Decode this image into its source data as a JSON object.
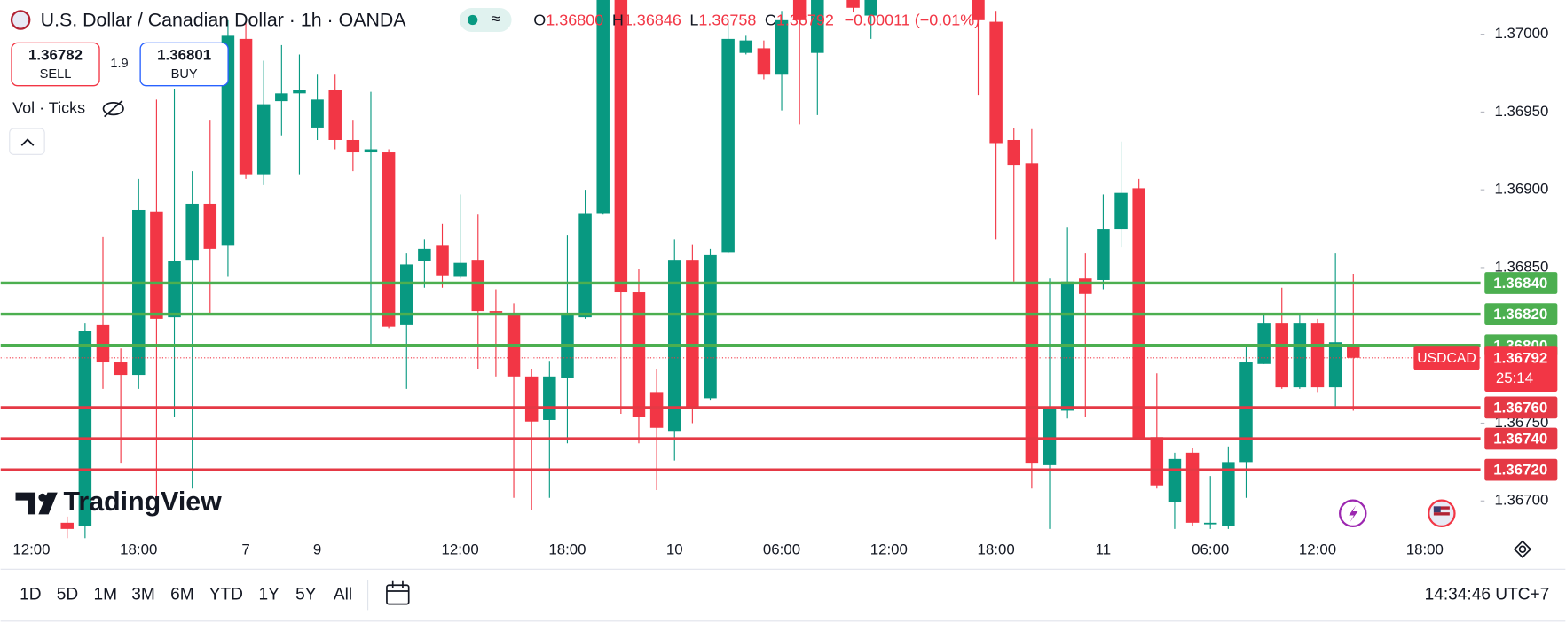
{
  "header": {
    "title": "U.S. Dollar / Canadian Dollar · 1h · OANDA",
    "ohlc": {
      "o_label": "O",
      "open": "1.36800",
      "h_label": "H",
      "high": "1.36846",
      "l_label": "L",
      "low": "1.36758",
      "c_label": "C",
      "close": "1.36792",
      "change": "−0.00011 (−0.01%)"
    }
  },
  "trade": {
    "sell_price": "1.36782",
    "sell_label": "SELL",
    "spread": "1.9",
    "buy_price": "1.36801",
    "buy_label": "BUY"
  },
  "indicator": "Vol · Ticks",
  "watermark": "TradingView",
  "toolbar": {
    "ranges": [
      "1D",
      "5D",
      "1M",
      "3M",
      "6M",
      "YTD",
      "1Y",
      "5Y",
      "All"
    ],
    "clock": "14:34:46 UTC+7"
  },
  "chart_data": {
    "type": "candlestick",
    "up_color": "#089981",
    "down_color": "#f23645",
    "grid": false,
    "categories": [
      "12:00",
      null,
      null,
      null,
      null,
      null,
      "18:00",
      null,
      null,
      null,
      null,
      null,
      "7",
      null,
      null,
      null,
      "9",
      null,
      null,
      null,
      null,
      null,
      null,
      null,
      "12:00",
      null,
      null,
      null,
      null,
      null,
      "18:00",
      null,
      null,
      null,
      null,
      null,
      "10",
      null,
      null,
      null,
      null,
      null,
      "06:00",
      null,
      null,
      null,
      null,
      null,
      "12:00",
      null,
      null,
      null,
      null,
      null,
      "18:00",
      null,
      null,
      null,
      null,
      null,
      "11",
      null,
      null,
      null,
      null,
      null,
      "06:00",
      null,
      null,
      null,
      null,
      null,
      "12:00",
      null,
      null,
      null,
      null,
      null,
      "18:00"
    ],
    "open": [
      null,
      null,
      1.36686,
      1.36684,
      1.36813,
      1.36789,
      1.36781,
      1.36886,
      1.36818,
      1.36855,
      1.36891,
      1.36864,
      1.36997,
      1.3691,
      1.36957,
      1.36962,
      1.3694,
      1.36964,
      1.36932,
      1.36924,
      1.36924,
      1.36813,
      1.36854,
      1.36864,
      1.36844,
      1.36855,
      1.36822,
      1.3682,
      1.3678,
      1.36752,
      1.36779,
      1.36818,
      1.36885,
      1.37025,
      1.36834,
      1.3677,
      1.36745,
      1.36855,
      1.36766,
      1.3686,
      1.36988,
      1.36991,
      1.36974,
      1.37025,
      1.36988,
      null,
      1.3703,
      1.37012,
      null,
      null,
      null,
      null,
      null,
      1.3703,
      1.37008,
      1.36932,
      1.36917,
      1.36723,
      1.36758,
      1.36843,
      1.36842,
      1.36875,
      1.36901,
      1.36741,
      1.36699,
      1.36731,
      1.36685,
      1.36684,
      1.36725,
      1.36788,
      1.36814,
      1.36773,
      1.36814,
      1.36773,
      1.368,
      null,
      null,
      null,
      null
    ],
    "high": [
      null,
      null,
      1.3669,
      1.36814,
      1.3687,
      1.36798,
      1.36907,
      1.36958,
      1.36965,
      1.36912,
      1.36945,
      1.37009,
      1.37009,
      1.36983,
      1.36993,
      1.36987,
      1.36974,
      1.36974,
      1.36945,
      1.36963,
      1.36926,
      1.36859,
      1.36868,
      1.36878,
      1.36897,
      1.36884,
      1.36836,
      1.36827,
      1.36785,
      1.3679,
      1.36871,
      1.369,
      1.3703,
      1.3703,
      1.36849,
      1.36785,
      1.36868,
      1.36865,
      1.36862,
      1.37009,
      1.36999,
      1.36996,
      1.37015,
      1.3703,
      1.3703,
      null,
      1.37035,
      1.37035,
      null,
      null,
      null,
      null,
      null,
      1.37035,
      1.37015,
      1.3694,
      1.36939,
      1.36843,
      1.36876,
      1.36859,
      1.36897,
      1.36931,
      1.36907,
      1.36782,
      1.36731,
      1.36734,
      1.36716,
      1.36735,
      1.36801,
      1.3682,
      1.36837,
      1.3682,
      1.36817,
      1.36859,
      1.36846,
      null,
      null,
      null,
      null
    ],
    "low": [
      null,
      null,
      1.36676,
      1.36676,
      1.36772,
      1.36724,
      1.36772,
      1.36695,
      1.36754,
      1.36708,
      1.3682,
      1.36844,
      1.36907,
      1.36903,
      1.36935,
      1.3691,
      1.36932,
      1.36926,
      1.36912,
      1.36801,
      1.36811,
      1.36772,
      1.36837,
      1.36837,
      1.36843,
      1.36785,
      1.3678,
      1.36702,
      1.36694,
      1.36702,
      1.36737,
      1.36817,
      1.36884,
      1.36756,
      1.36737,
      1.36707,
      1.36726,
      1.3675,
      1.36765,
      1.36859,
      1.36987,
      1.36971,
      1.36951,
      1.36942,
      1.36948,
      null,
      1.37014,
      1.36997,
      null,
      null,
      null,
      null,
      null,
      1.36961,
      1.36868,
      1.36841,
      1.36708,
      1.36682,
      1.36753,
      1.36754,
      1.36836,
      1.36863,
      1.36739,
      1.36708,
      1.36682,
      1.36684,
      1.36682,
      1.36682,
      1.36702,
      1.36788,
      1.36772,
      1.36772,
      1.3677,
      1.36759,
      1.36758,
      null,
      null,
      null,
      null
    ],
    "close": [
      null,
      null,
      1.36682,
      1.36809,
      1.36789,
      1.36781,
      1.36887,
      1.36817,
      1.36854,
      1.36891,
      1.36862,
      1.36999,
      1.3691,
      1.36955,
      1.36962,
      1.36964,
      1.36958,
      1.36932,
      1.36924,
      1.36926,
      1.36812,
      1.36852,
      1.36862,
      1.36845,
      1.36853,
      1.36822,
      1.36821,
      1.3678,
      1.36751,
      1.3678,
      1.3682,
      1.36885,
      1.37025,
      1.36834,
      1.36754,
      1.36747,
      1.36855,
      1.36759,
      1.36858,
      1.36997,
      1.36996,
      1.36974,
      1.37009,
      1.37009,
      1.37025,
      null,
      1.37017,
      1.3703,
      null,
      null,
      null,
      null,
      null,
      1.37009,
      1.3693,
      1.36916,
      1.36724,
      1.36759,
      1.36841,
      1.36833,
      1.36875,
      1.36898,
      1.3674,
      1.3671,
      1.36727,
      1.36686,
      1.36686,
      1.36725,
      1.36789,
      1.36814,
      1.36773,
      1.36814,
      1.36773,
      1.36802,
      1.36792,
      null,
      null,
      null,
      null
    ],
    "ylim": [
      1.36676,
      1.37022
    ],
    "yticks": [
      {
        "value": 1.37,
        "label": "1.37000"
      },
      {
        "value": 1.3695,
        "label": "1.36950"
      },
      {
        "value": 1.369,
        "label": "1.36900"
      },
      {
        "value": 1.3685,
        "label": "1.36850"
      },
      {
        "value": 1.3675,
        "label": "1.36750"
      },
      {
        "value": 1.367,
        "label": "1.36700"
      }
    ],
    "levels": [
      {
        "value": 1.3684,
        "label": "1.36840",
        "color": "#4caf50"
      },
      {
        "value": 1.3682,
        "label": "1.36820",
        "color": "#4caf50"
      },
      {
        "value": 1.368,
        "label": "1.36800",
        "color": "#4caf50"
      },
      {
        "value": 1.3676,
        "label": "1.36760",
        "color": "#e53945"
      },
      {
        "value": 1.3674,
        "label": "1.36740",
        "color": "#e53945"
      },
      {
        "value": 1.3672,
        "label": "1.36720",
        "color": "#e53945"
      }
    ],
    "last_price": {
      "value": 1.36792,
      "label": "1.36792",
      "symbol": "USDCAD",
      "countdown": "25:14",
      "color": "#f23645"
    }
  }
}
